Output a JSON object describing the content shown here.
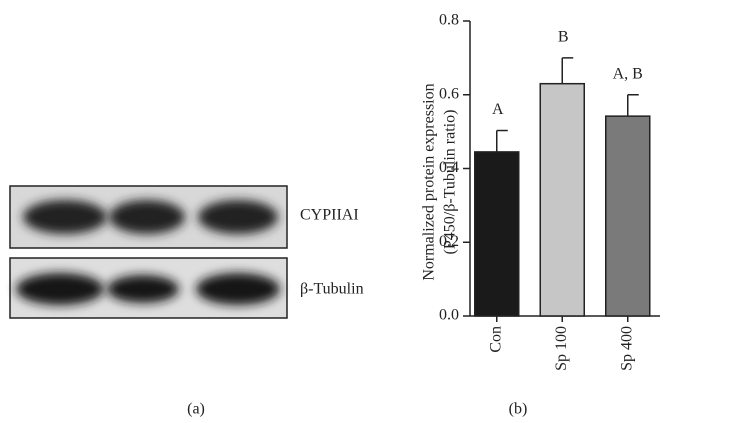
{
  "blot": {
    "labels": [
      "CYPIIAI",
      "β-Tubulin"
    ],
    "panel_label": "(a)"
  },
  "chart_data": {
    "type": "bar",
    "ylabel": [
      "Normalized protein expression",
      "(P450/β-Tubulin ratio)"
    ],
    "categories": [
      "Con",
      "Sp 100",
      "Sp 400"
    ],
    "values": [
      0.445,
      0.63,
      0.542
    ],
    "errors": [
      0.058,
      0.07,
      0.058
    ],
    "annotations": [
      "A",
      "B",
      "A, B"
    ],
    "colors": [
      "#1a1a1a",
      "#c6c6c6",
      "#7a7a7a"
    ],
    "ylim": [
      0,
      0.8
    ],
    "yticks": [
      {
        "value": 0,
        "label": "0.0"
      },
      0.2,
      0.4,
      0.6,
      0.8
    ],
    "panel_label": "(b)"
  }
}
